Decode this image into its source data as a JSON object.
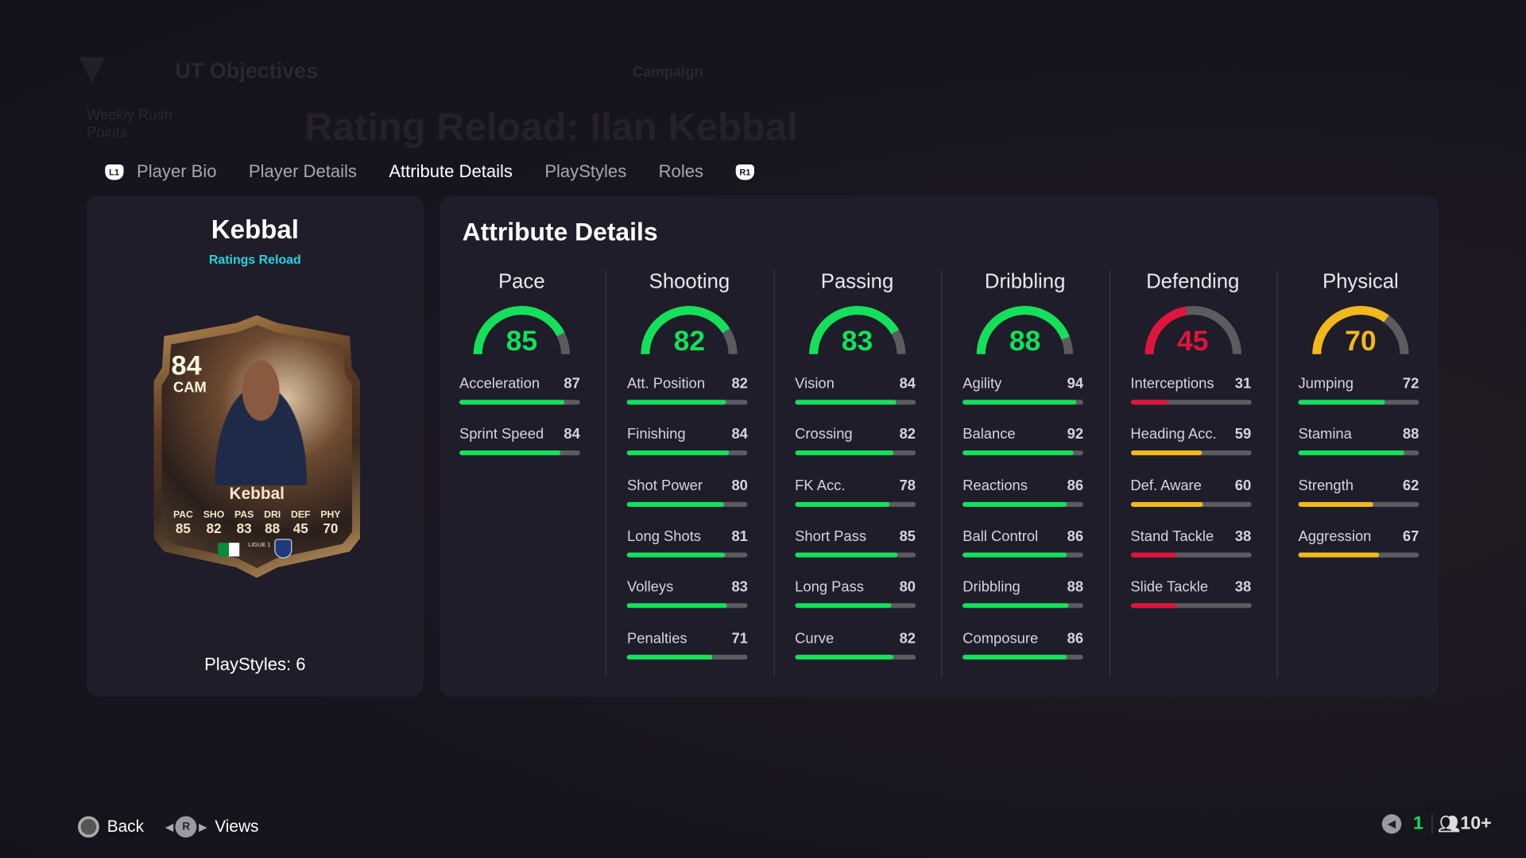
{
  "background": {
    "header": "UT Objectives",
    "nav_item": "Campaign",
    "page_title": "Rating Reload: Ilan Kebbal",
    "side_item": "Weekly Rush Points"
  },
  "tabs": {
    "left_badge": "L1",
    "right_badge": "R1",
    "items": [
      {
        "label": "Player Bio"
      },
      {
        "label": "Player Details"
      },
      {
        "label": "Attribute Details",
        "active": true
      },
      {
        "label": "PlayStyles"
      },
      {
        "label": "Roles"
      }
    ]
  },
  "player": {
    "name": "Kebbal",
    "subtitle": "Ratings Reload",
    "playstyles": "PlayStyles: 6",
    "card": {
      "rating": "84",
      "position": "CAM",
      "name": "Kebbal",
      "league": "LIGUE 1",
      "stats": [
        {
          "k": "PAC",
          "v": "85"
        },
        {
          "k": "SHO",
          "v": "82"
        },
        {
          "k": "PAS",
          "v": "83"
        },
        {
          "k": "DRI",
          "v": "88"
        },
        {
          "k": "DEF",
          "v": "45"
        },
        {
          "k": "PHY",
          "v": "70"
        }
      ]
    }
  },
  "attributes": {
    "title": "Attribute Details",
    "colors": {
      "green": "#14e05a",
      "yellow": "#f2b81c",
      "red": "#e0143c",
      "track": "#5c5b60"
    },
    "categories": [
      {
        "name": "Pace",
        "value": 85,
        "color": "#14e05a",
        "stats": [
          {
            "label": "Acceleration",
            "value": 87
          },
          {
            "label": "Sprint Speed",
            "value": 84
          }
        ]
      },
      {
        "name": "Shooting",
        "value": 82,
        "color": "#14e05a",
        "stats": [
          {
            "label": "Att. Position",
            "value": 82
          },
          {
            "label": "Finishing",
            "value": 84
          },
          {
            "label": "Shot Power",
            "value": 80
          },
          {
            "label": "Long Shots",
            "value": 81
          },
          {
            "label": "Volleys",
            "value": 83
          },
          {
            "label": "Penalties",
            "value": 71
          }
        ]
      },
      {
        "name": "Passing",
        "value": 83,
        "color": "#14e05a",
        "stats": [
          {
            "label": "Vision",
            "value": 84
          },
          {
            "label": "Crossing",
            "value": 82
          },
          {
            "label": "FK Acc.",
            "value": 78
          },
          {
            "label": "Short Pass",
            "value": 85
          },
          {
            "label": "Long Pass",
            "value": 80
          },
          {
            "label": "Curve",
            "value": 82
          }
        ]
      },
      {
        "name": "Dribbling",
        "value": 88,
        "color": "#14e05a",
        "stats": [
          {
            "label": "Agility",
            "value": 94
          },
          {
            "label": "Balance",
            "value": 92
          },
          {
            "label": "Reactions",
            "value": 86
          },
          {
            "label": "Ball Control",
            "value": 86
          },
          {
            "label": "Dribbling",
            "value": 88
          },
          {
            "label": "Composure",
            "value": 86
          }
        ]
      },
      {
        "name": "Defending",
        "value": 45,
        "color": "#e0143c",
        "stats": [
          {
            "label": "Interceptions",
            "value": 31
          },
          {
            "label": "Heading Acc.",
            "value": 59
          },
          {
            "label": "Def. Aware",
            "value": 60
          },
          {
            "label": "Stand Tackle",
            "value": 38
          },
          {
            "label": "Slide Tackle",
            "value": 38
          }
        ]
      },
      {
        "name": "Physical",
        "value": 70,
        "color": "#f2b81c",
        "stats": [
          {
            "label": "Jumping",
            "value": 72
          },
          {
            "label": "Stamina",
            "value": 88
          },
          {
            "label": "Strength",
            "value": 62
          },
          {
            "label": "Aggression",
            "value": 67
          }
        ]
      }
    ]
  },
  "footer": {
    "back": "Back",
    "views": "Views",
    "r_button": "R",
    "count": "1",
    "online": "10+",
    "icons": [
      "circle-button-icon",
      "arrow-left-icon",
      "arrow-right-icon",
      "speaker-icon",
      "users-icon"
    ]
  }
}
